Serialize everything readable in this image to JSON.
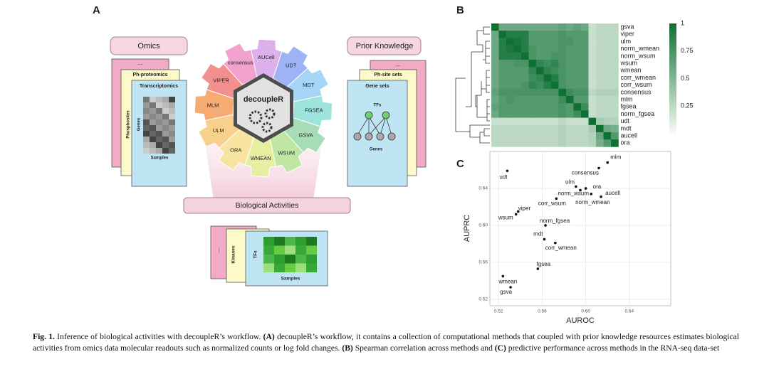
{
  "panel_a": {
    "label": "A",
    "omics": {
      "title": "Omics",
      "cards": [
        "...",
        "Ph-proteomics",
        "Transcriptomics"
      ],
      "side_label": "Phosphosites",
      "genes_label": "Genes",
      "samples_label": "Samples"
    },
    "prior_knowledge": {
      "title": "Prior Knowledge",
      "cards": [
        "...",
        "Ph-site sets",
        "Gene sets"
      ],
      "sets_label": "TFs",
      "genes_label": "Genes"
    },
    "hub": {
      "center": "decoupleR",
      "methods": [
        {
          "label": "AUCell",
          "color": "#dcb0ea"
        },
        {
          "label": "UDT",
          "color": "#9db3f5"
        },
        {
          "label": "MDT",
          "color": "#a5d6f6"
        },
        {
          "label": "FGSEA",
          "color": "#9ee3dc"
        },
        {
          "label": "GSVA",
          "color": "#a6dcb6"
        },
        {
          "label": "WSUM",
          "color": "#bfe6a2"
        },
        {
          "label": "WMEAN",
          "color": "#e6efa0"
        },
        {
          "label": "ORA",
          "color": "#f7e4a0"
        },
        {
          "label": "ULM",
          "color": "#f8d08e"
        },
        {
          "label": "MLM",
          "color": "#f6ab72"
        },
        {
          "label": "VIPER",
          "color": "#f29090"
        },
        {
          "label": "consensus",
          "color": "#f3a2cd"
        }
      ]
    },
    "output": {
      "title": "Biological Activities",
      "cards": [
        "...",
        "Kinases",
        "TFs"
      ],
      "samples_label": "Samples"
    }
  },
  "chart_data": [
    {
      "type": "heatmap",
      "panel_label": "B",
      "categories": [
        "gsva",
        "viper",
        "ulm",
        "norm_wmean",
        "norm_wsum",
        "wsum",
        "wmean",
        "corr_wmean",
        "corr_wsum",
        "consensus",
        "mlm",
        "fgsea",
        "norm_fgsea",
        "udt",
        "mdt",
        "aucell",
        "ora"
      ],
      "values": [
        [
          1,
          0.6,
          0.6,
          0.6,
          0.6,
          0.6,
          0.6,
          0.6,
          0.6,
          0.65,
          0.6,
          0.65,
          0.6,
          0.2,
          0.25,
          0.25,
          0.25
        ],
        [
          0.6,
          1,
          0.9,
          0.9,
          0.9,
          0.7,
          0.7,
          0.7,
          0.7,
          0.75,
          0.7,
          0.7,
          0.7,
          0.2,
          0.25,
          0.25,
          0.25
        ],
        [
          0.6,
          0.9,
          1,
          0.95,
          0.9,
          0.7,
          0.7,
          0.7,
          0.7,
          0.75,
          0.75,
          0.7,
          0.7,
          0.2,
          0.25,
          0.25,
          0.25
        ],
        [
          0.6,
          0.9,
          0.95,
          1,
          0.9,
          0.75,
          0.7,
          0.7,
          0.7,
          0.75,
          0.7,
          0.7,
          0.7,
          0.2,
          0.25,
          0.25,
          0.25
        ],
        [
          0.6,
          0.9,
          0.9,
          0.9,
          1,
          0.75,
          0.7,
          0.7,
          0.75,
          0.75,
          0.7,
          0.7,
          0.7,
          0.2,
          0.25,
          0.25,
          0.25
        ],
        [
          0.6,
          0.7,
          0.7,
          0.75,
          0.75,
          1,
          0.85,
          0.8,
          0.85,
          0.75,
          0.7,
          0.7,
          0.7,
          0.2,
          0.25,
          0.25,
          0.25
        ],
        [
          0.6,
          0.7,
          0.7,
          0.7,
          0.7,
          0.85,
          1,
          0.85,
          0.8,
          0.75,
          0.7,
          0.7,
          0.7,
          0.2,
          0.25,
          0.25,
          0.25
        ],
        [
          0.6,
          0.7,
          0.7,
          0.7,
          0.7,
          0.8,
          0.85,
          1,
          0.9,
          0.75,
          0.7,
          0.7,
          0.7,
          0.2,
          0.25,
          0.25,
          0.25
        ],
        [
          0.6,
          0.7,
          0.7,
          0.7,
          0.75,
          0.85,
          0.8,
          0.9,
          1,
          0.75,
          0.7,
          0.7,
          0.7,
          0.2,
          0.25,
          0.25,
          0.25
        ],
        [
          0.65,
          0.75,
          0.75,
          0.75,
          0.75,
          0.75,
          0.75,
          0.75,
          0.75,
          1,
          0.8,
          0.75,
          0.75,
          0.25,
          0.3,
          0.3,
          0.3
        ],
        [
          0.6,
          0.7,
          0.75,
          0.7,
          0.7,
          0.7,
          0.7,
          0.7,
          0.7,
          0.8,
          1,
          0.7,
          0.7,
          0.2,
          0.25,
          0.25,
          0.25
        ],
        [
          0.65,
          0.7,
          0.7,
          0.7,
          0.7,
          0.7,
          0.7,
          0.7,
          0.7,
          0.75,
          0.7,
          1,
          0.8,
          0.2,
          0.25,
          0.25,
          0.25
        ],
        [
          0.6,
          0.7,
          0.7,
          0.7,
          0.7,
          0.7,
          0.7,
          0.7,
          0.7,
          0.75,
          0.7,
          0.8,
          1,
          0.2,
          0.25,
          0.25,
          0.25
        ],
        [
          0.2,
          0.2,
          0.2,
          0.2,
          0.2,
          0.2,
          0.2,
          0.2,
          0.2,
          0.25,
          0.2,
          0.2,
          0.2,
          1,
          0.35,
          0.3,
          0.3
        ],
        [
          0.25,
          0.25,
          0.25,
          0.25,
          0.25,
          0.25,
          0.25,
          0.25,
          0.25,
          0.3,
          0.25,
          0.25,
          0.25,
          0.35,
          1,
          0.6,
          0.55
        ],
        [
          0.25,
          0.25,
          0.25,
          0.25,
          0.25,
          0.25,
          0.25,
          0.25,
          0.25,
          0.3,
          0.25,
          0.25,
          0.25,
          0.3,
          0.6,
          1,
          0.7
        ],
        [
          0.25,
          0.25,
          0.25,
          0.25,
          0.25,
          0.25,
          0.25,
          0.25,
          0.25,
          0.3,
          0.25,
          0.25,
          0.25,
          0.3,
          0.55,
          0.7,
          1
        ]
      ],
      "zlim": [
        0,
        1
      ],
      "zticks": [
        0.25,
        0.5,
        0.75,
        1
      ],
      "colorscale": [
        "#f7fcf5",
        "#0f7034"
      ]
    },
    {
      "type": "scatter",
      "panel_label": "C",
      "xlabel": "AUROC",
      "ylabel": "AUPRC",
      "point_labels": [
        "mlm",
        "consensus",
        "udt",
        "ulm",
        "ora",
        "norm_wsum",
        "aucell",
        "norm_wmean",
        "corr_wsum",
        "viper",
        "wsum",
        "norm_fgsea",
        "mdt",
        "corr_wmean",
        "fgsea",
        "wmean",
        "gsva"
      ],
      "x": [
        0.62,
        0.612,
        0.528,
        0.591,
        0.6,
        0.595,
        0.614,
        0.605,
        0.573,
        0.538,
        0.536,
        0.563,
        0.562,
        0.572,
        0.556,
        0.524,
        0.531
      ],
      "values": [
        0.668,
        0.662,
        0.659,
        0.642,
        0.64,
        0.638,
        0.631,
        0.634,
        0.629,
        0.615,
        0.612,
        0.6,
        0.585,
        0.581,
        0.553,
        0.545,
        0.533
      ],
      "xlim": [
        0.512,
        0.678
      ],
      "ylim": [
        0.513,
        0.68
      ],
      "xticks": [
        0.52,
        0.56,
        {
          "value": 0.6,
          "label": "0.60"
        },
        0.64
      ],
      "yticks": [
        0.52,
        0.56,
        {
          "value": 0.6,
          "label": "0.60"
        },
        0.64
      ],
      "color": "#111111",
      "grid": true
    }
  ],
  "caption": [
    "Fig. 1.",
    " Inference of biological activities with decoupleR’s workflow. ",
    "(A)",
    " decoupleR’s workflow, it contains a collection of computational methods that coupled with prior knowledge resources estimates biological activities from omics data molecular readouts such as normalized counts or log fold changes. ",
    "(B)",
    " Spearman correlation across methods and ",
    "(C)",
    " predictive performance across methods in the RNA-seq data-set"
  ]
}
